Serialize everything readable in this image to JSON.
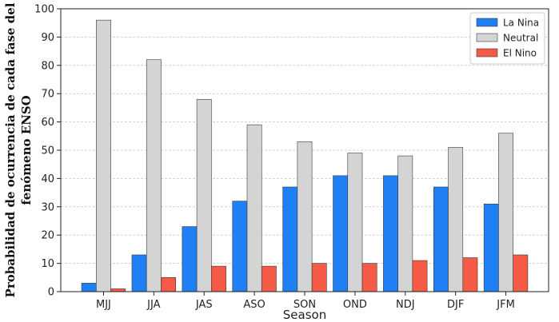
{
  "chart_data": {
    "type": "bar",
    "categories": [
      "MJJ",
      "JJA",
      "JAS",
      "ASO",
      "SON",
      "OND",
      "NDJ",
      "DJF",
      "JFM"
    ],
    "series": [
      {
        "name": "La Nina",
        "color": "#1f7ff5",
        "values": [
          3,
          13,
          23,
          32,
          37,
          41,
          41,
          37,
          31
        ]
      },
      {
        "name": "Neutral",
        "color": "#d4d4d4",
        "values": [
          96,
          82,
          68,
          59,
          53,
          49,
          48,
          51,
          56
        ]
      },
      {
        "name": "El Nino",
        "color": "#f55a46",
        "values": [
          1,
          5,
          9,
          9,
          10,
          10,
          11,
          12,
          13
        ]
      }
    ],
    "xlabel": "Season",
    "ylabel_lines": [
      "Probabilidad de ocurrencia  de cada fase del",
      "fenómeno ENSO"
    ],
    "ylim": [
      0,
      100
    ],
    "yticks": [
      0,
      10,
      20,
      30,
      40,
      50,
      60,
      70,
      80,
      90,
      100
    ],
    "grid": true,
    "legend_position": "top-right"
  }
}
